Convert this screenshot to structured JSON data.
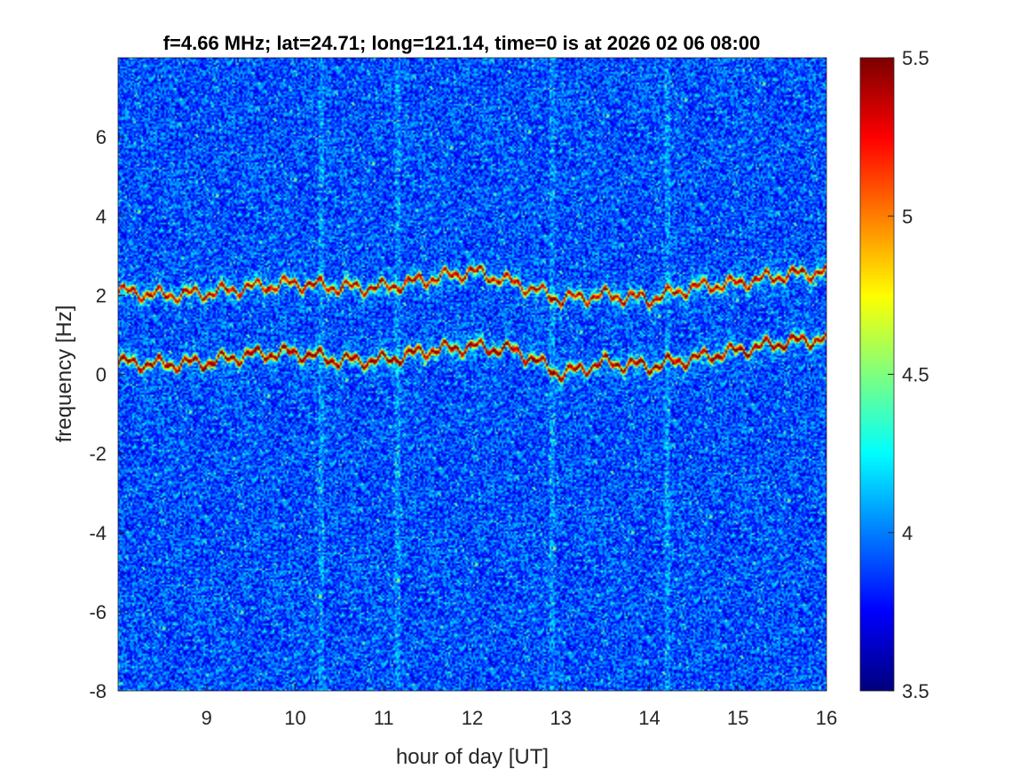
{
  "chart_data": {
    "type": "heatmap",
    "title": "f=4.66 MHz;  lat=24.71; long=121.14, time=0 is at 2026 02 06 08:00",
    "xlabel": "hour of day [UT]",
    "ylabel": "frequency [Hz]",
    "xlim": [
      8,
      16
    ],
    "ylim": [
      -8,
      8
    ],
    "xticks": [
      9,
      10,
      11,
      12,
      13,
      14,
      15,
      16
    ],
    "yticks": [
      -8,
      -6,
      -4,
      -2,
      0,
      2,
      4,
      6
    ],
    "colorbar": {
      "colormap": "jet",
      "clim": [
        3.5,
        5.5
      ],
      "ticks": [
        "3.5",
        "4",
        "4.5",
        "5",
        "5.5"
      ],
      "placement": "right"
    },
    "background_level": 3.9,
    "ridges": [
      {
        "name": "upper ridge",
        "x": [
          8,
          8.5,
          9,
          9.5,
          10,
          10.5,
          11,
          11.5,
          12,
          12.5,
          13,
          13.5,
          14,
          14.5,
          15,
          15.5,
          16
        ],
        "y": [
          2.1,
          2.0,
          2.05,
          2.2,
          2.3,
          2.2,
          2.2,
          2.4,
          2.6,
          2.3,
          1.9,
          2.0,
          1.9,
          2.2,
          2.3,
          2.5,
          2.6
        ]
      },
      {
        "name": "lower ridge",
        "x": [
          8,
          8.5,
          9,
          9.5,
          10,
          10.5,
          11,
          11.5,
          12,
          12.5,
          13,
          13.5,
          14,
          14.5,
          15,
          15.5,
          16
        ],
        "y": [
          0.3,
          0.25,
          0.3,
          0.5,
          0.55,
          0.35,
          0.35,
          0.6,
          0.7,
          0.6,
          0.0,
          0.3,
          0.2,
          0.4,
          0.6,
          0.8,
          0.9
        ]
      }
    ],
    "vertical_streaks_hours": [
      10.3,
      11.15,
      12.9,
      14.2
    ],
    "grid": false
  }
}
